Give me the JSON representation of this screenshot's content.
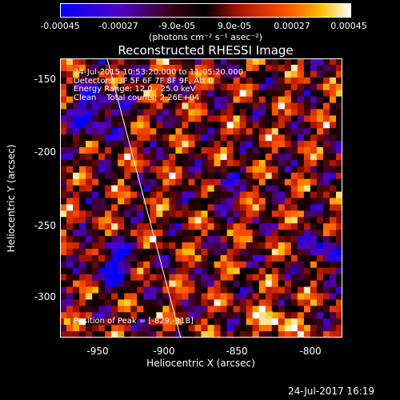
{
  "colorbar": {
    "ticks": [
      "-0.00045",
      "-0.00027",
      "-9.0e-05",
      "9.0e-05",
      "0.00027",
      "0.00045"
    ],
    "units": "(photons cm⁻² s⁻¹ asec⁻²)",
    "min": -0.00045,
    "max": 0.00045
  },
  "chart_data": {
    "type": "heatmap",
    "title": "Reconstructed RHESSI Image",
    "xlabel": "Heliocentric X (arcsec)",
    "ylabel": "Heliocentric Y (arcsec)",
    "xlim": [
      -972,
      -780
    ],
    "ylim": [
      -335,
      -137
    ],
    "xticks": [
      "-950",
      "-900",
      "-850",
      "-800"
    ],
    "yticks": [
      "-150",
      "-200",
      "-250",
      "-300"
    ],
    "annotations": [
      "24-Jul-2015 10:53:20.000 to 11:05:20.000",
      "Detectors: 3F 5F 6F 7F 8F 9F, Att 0",
      "Energy Range: 12.0 - 25.0 keV",
      "Clean    Total counts: 2.26E+04"
    ],
    "peak_label": "Position of Peak = [-829,-318]",
    "peak": [
      -829,
      -318
    ],
    "limb_line": [
      [
        -940,
        -137
      ],
      [
        -890,
        -335
      ]
    ]
  },
  "timestamp": "24-Jul-2017 16:19"
}
